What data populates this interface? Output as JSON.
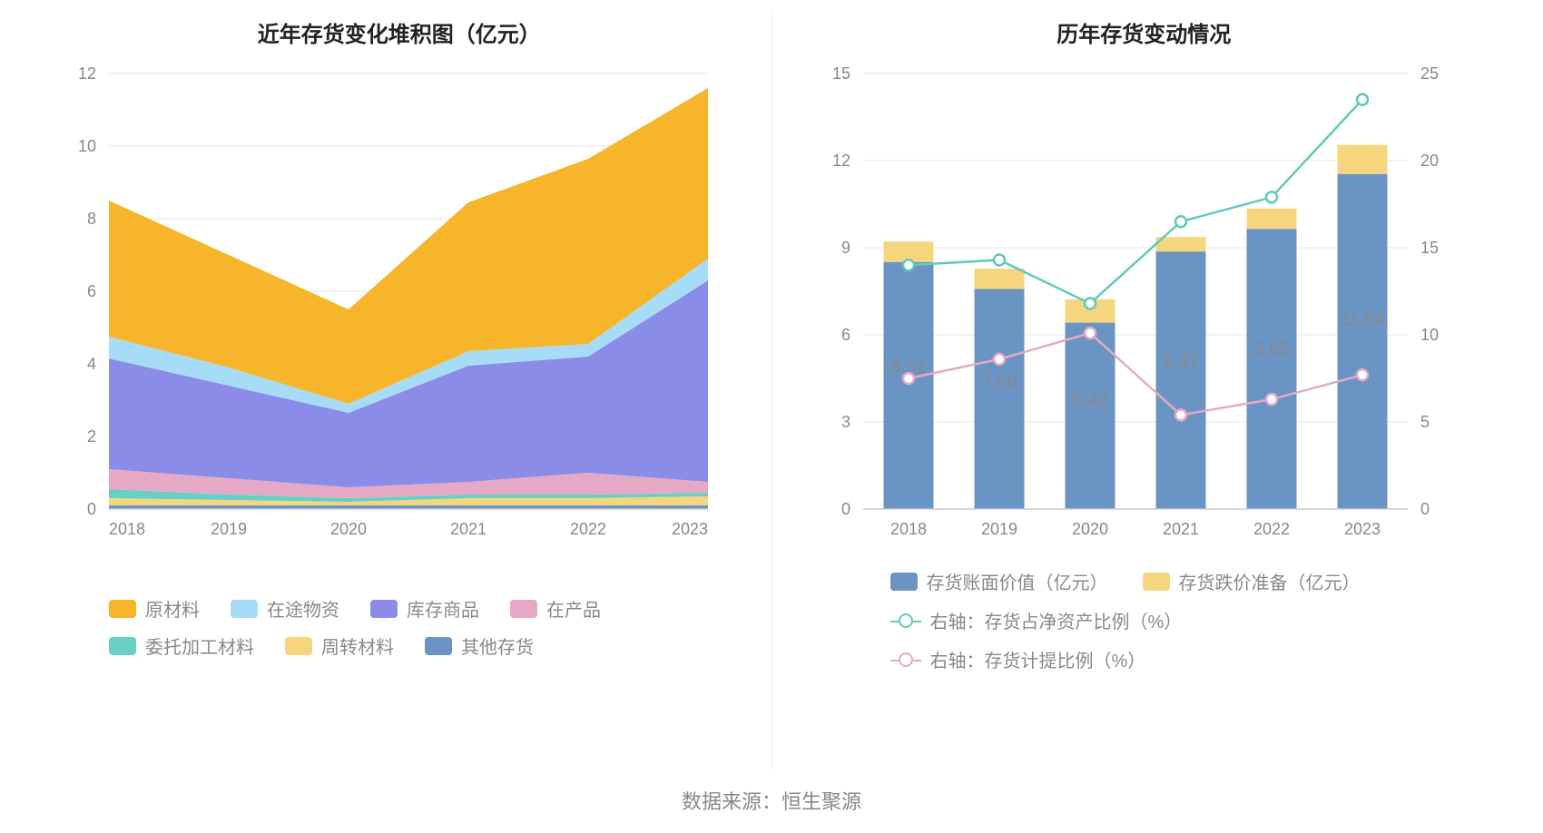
{
  "source_label": "数据来源：恒生聚源",
  "left_chart": {
    "type": "stacked-area",
    "title": "近年存货变化堆积图（亿元）",
    "categories": [
      "2018",
      "2019",
      "2020",
      "2021",
      "2022",
      "2023"
    ],
    "ylim": [
      0,
      12
    ],
    "ytick_step": 2,
    "grid_color": "#e6e6e6",
    "axis_color": "#cccccc",
    "label_color": "#888888",
    "label_fontsize": 18,
    "background_color": "#ffffff",
    "series": [
      {
        "key": "raw_material",
        "label": "原材料",
        "color": "#f7b52c",
        "values": [
          3.75,
          3.1,
          2.6,
          4.1,
          5.1,
          4.7
        ]
      },
      {
        "key": "in_transit",
        "label": "在途物资",
        "color": "#a7dcf8",
        "values": [
          0.6,
          0.5,
          0.25,
          0.4,
          0.35,
          0.6
        ]
      },
      {
        "key": "finished_goods",
        "label": "库存商品",
        "color": "#8b8be8",
        "values": [
          3.05,
          2.55,
          2.05,
          3.2,
          3.2,
          5.55
        ]
      },
      {
        "key": "wip",
        "label": "在产品",
        "color": "#e6a9c5",
        "values": [
          0.55,
          0.45,
          0.3,
          0.35,
          0.6,
          0.3
        ]
      },
      {
        "key": "consigned_proc",
        "label": "委托加工材料",
        "color": "#67cfc4",
        "values": [
          0.25,
          0.15,
          0.1,
          0.1,
          0.1,
          0.1
        ]
      },
      {
        "key": "turnover_material",
        "label": "周转材料",
        "color": "#f5d67f",
        "values": [
          0.2,
          0.15,
          0.1,
          0.2,
          0.2,
          0.25
        ]
      },
      {
        "key": "other_inventory",
        "label": "其他存货",
        "color": "#6a94c4",
        "values": [
          0.1,
          0.1,
          0.1,
          0.1,
          0.1,
          0.1
        ]
      }
    ]
  },
  "right_chart": {
    "type": "bar+line-dual-axis",
    "title": "历年存货变动情况",
    "categories": [
      "2018",
      "2019",
      "2020",
      "2021",
      "2022",
      "2023"
    ],
    "y_left": {
      "lim": [
        0,
        15
      ],
      "tick_step": 3
    },
    "y_right": {
      "lim": [
        0,
        25
      ],
      "tick_step": 5
    },
    "grid_color": "#e6e6e6",
    "axis_color": "#cccccc",
    "label_color": "#888888",
    "label_fontsize": 18,
    "bar_group_width": 0.55,
    "bars": [
      {
        "key": "book_value",
        "label": "存货账面价值（亿元）",
        "color": "#6a94c4",
        "values": [
          8.51,
          7.58,
          6.42,
          8.87,
          9.65,
          11.54
        ],
        "show_label": true
      },
      {
        "key": "impairment",
        "label": "存货跌价准备（亿元）",
        "color": "#f5d67f",
        "values": [
          0.7,
          0.7,
          0.8,
          0.5,
          0.7,
          1.0
        ],
        "show_label": false
      }
    ],
    "lines": [
      {
        "key": "pct_net_assets",
        "label": "右轴：存货占净资产比例（%）",
        "color": "#60c9b8",
        "marker": "circle",
        "values": [
          14.0,
          14.3,
          11.8,
          16.5,
          17.9,
          23.5
        ]
      },
      {
        "key": "pct_provision",
        "label": "右轴：存货计提比例（%）",
        "color": "#e6a9c5",
        "marker": "circle",
        "values": [
          7.5,
          8.6,
          10.1,
          5.4,
          6.3,
          7.7
        ]
      }
    ]
  }
}
